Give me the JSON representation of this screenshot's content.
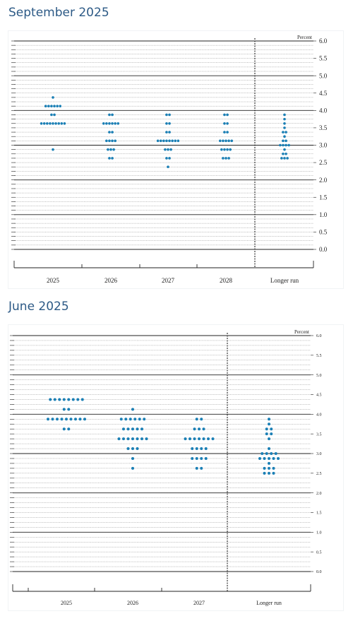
{
  "page": {
    "sections": [
      {
        "title": "September 2025"
      },
      {
        "title": "June 2025"
      }
    ]
  },
  "colors": {
    "dot": "#1a7fb5",
    "title": "#2d5a86",
    "axis": "#222222",
    "grid": "#777777"
  },
  "chart_data": [
    {
      "type": "scatter",
      "title": "",
      "unit_label": "Percent",
      "categories": [
        "2025",
        "2026",
        "2027",
        "2028",
        "Longer run"
      ],
      "ylim": [
        0,
        6
      ],
      "yticks": [
        "0.0",
        "0.5",
        "1.0",
        "1.5",
        "2.0",
        "2.5",
        "3.0",
        "3.5",
        "4.0",
        "4.5",
        "5.0",
        "5.5",
        "6.0"
      ],
      "grid": true,
      "divider_before": "Longer run",
      "dots": [
        {
          "category": "2025",
          "rows": [
            [
              4.375,
              1
            ],
            [
              4.125,
              6
            ],
            [
              3.875,
              2
            ],
            [
              3.625,
              9
            ],
            [
              2.875,
              1
            ]
          ]
        },
        {
          "category": "2026",
          "rows": [
            [
              3.875,
              2
            ],
            [
              3.625,
              6
            ],
            [
              3.375,
              2
            ],
            [
              3.125,
              4
            ],
            [
              2.875,
              3
            ],
            [
              2.625,
              2
            ]
          ]
        },
        {
          "category": "2027",
          "rows": [
            [
              3.875,
              2
            ],
            [
              3.625,
              2
            ],
            [
              3.375,
              2
            ],
            [
              3.125,
              8
            ],
            [
              2.875,
              3
            ],
            [
              2.625,
              2
            ],
            [
              2.375,
              1
            ]
          ]
        },
        {
          "category": "2028",
          "rows": [
            [
              3.875,
              2
            ],
            [
              3.625,
              2
            ],
            [
              3.375,
              2
            ],
            [
              3.125,
              5
            ],
            [
              2.875,
              4
            ],
            [
              2.625,
              3
            ]
          ]
        },
        {
          "category": "Longer run",
          "rows": [
            [
              3.875,
              1
            ],
            [
              3.75,
              1
            ],
            [
              3.625,
              1
            ],
            [
              3.5,
              1
            ],
            [
              3.375,
              2
            ],
            [
              3.25,
              1
            ],
            [
              3.125,
              2
            ],
            [
              3.0,
              4
            ],
            [
              2.875,
              1
            ],
            [
              2.75,
              2
            ],
            [
              2.625,
              3
            ]
          ]
        }
      ]
    },
    {
      "type": "scatter",
      "title": "",
      "unit_label": "Percent",
      "categories": [
        "2025",
        "2026",
        "2027",
        "Longer run"
      ],
      "ylim": [
        0,
        6
      ],
      "yticks": [
        "0.0",
        "0.5",
        "1.0",
        "1.5",
        "2.0",
        "2.5",
        "3.0",
        "3.5",
        "4.0",
        "4.5",
        "5.0",
        "5.5",
        "6.0"
      ],
      "grid": true,
      "divider_before": "Longer run",
      "dots": [
        {
          "category": "2025",
          "rows": [
            [
              4.375,
              8
            ],
            [
              4.125,
              2
            ],
            [
              3.875,
              9
            ],
            [
              3.625,
              2
            ]
          ]
        },
        {
          "category": "2026",
          "rows": [
            [
              4.125,
              1
            ],
            [
              3.875,
              6
            ],
            [
              3.625,
              5
            ],
            [
              3.375,
              7
            ],
            [
              3.125,
              3
            ],
            [
              2.875,
              1
            ],
            [
              2.625,
              1
            ]
          ]
        },
        {
          "category": "2027",
          "rows": [
            [
              3.875,
              2
            ],
            [
              3.625,
              3
            ],
            [
              3.375,
              7
            ],
            [
              3.125,
              4
            ],
            [
              2.875,
              4
            ],
            [
              2.625,
              2
            ]
          ]
        },
        {
          "category": "Longer run",
          "rows": [
            [
              3.875,
              1
            ],
            [
              3.75,
              1
            ],
            [
              3.625,
              2
            ],
            [
              3.5,
              2
            ],
            [
              3.375,
              1
            ],
            [
              3.125,
              1
            ],
            [
              3.0,
              4
            ],
            [
              2.875,
              5
            ],
            [
              2.75,
              1
            ],
            [
              2.625,
              3
            ],
            [
              2.5,
              3
            ]
          ]
        }
      ]
    }
  ]
}
